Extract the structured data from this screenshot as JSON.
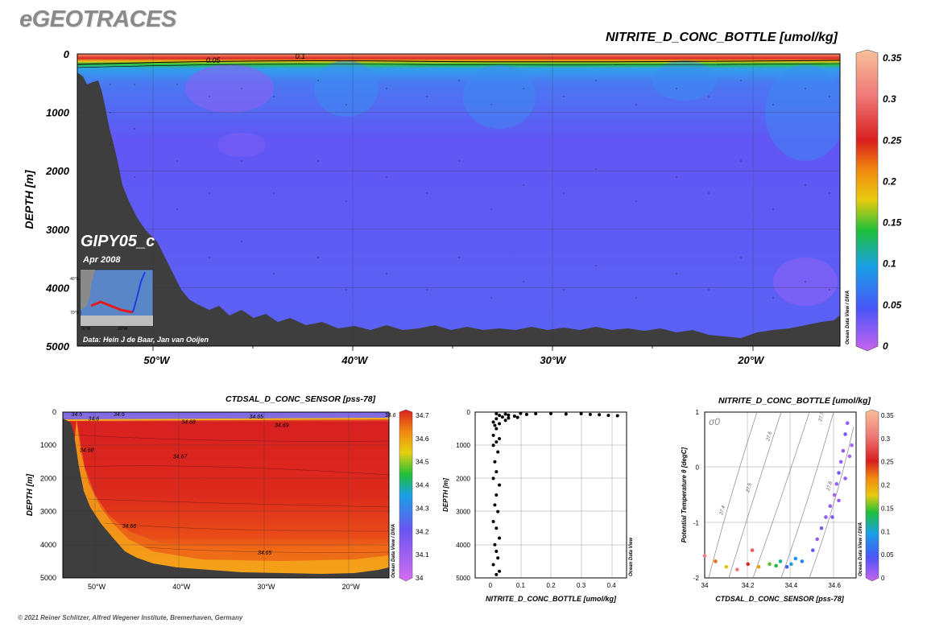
{
  "brand": "eGEOTRACES",
  "copyright": "© 2021 Reiner Schlitzer, Alfred Wegener Institute, Bremerhaven, Germany",
  "odv_tag": "Ocean Data View / DIVA",
  "odv_tag_short": "Ocean Data View",
  "inset": {
    "cruise": "GIPY05_c",
    "date": "Apr 2008",
    "credit": "Data: Hein J de Baar, Jan van Ooijen",
    "lat_labels": [
      "40°S",
      "70°S"
    ],
    "lon_labels": [
      "70°W",
      "20°W"
    ]
  },
  "chart_data": [
    {
      "type": "heatmap",
      "name_text": "NITRITE_D_CONC_BOTTLE [umol/kg]",
      "title": "NITRITE_D_CONC_BOTTLE [umol/kg]",
      "xlabel": "",
      "ylabel": "DEPTH [m]",
      "x_ticks": [
        "50°W",
        "40°W",
        "30°W",
        "20°W"
      ],
      "x_tick_values": [
        -50,
        -40,
        -30,
        -20
      ],
      "xlim": [
        -54,
        -15.5
      ],
      "y_ticks": [
        0,
        1000,
        2000,
        3000,
        4000,
        5000
      ],
      "ylim": [
        0,
        5000
      ],
      "colorbar": {
        "ticks": [
          0,
          0.05,
          0.1,
          0.15,
          0.2,
          0.25,
          0.3,
          0.35
        ],
        "range": [
          0,
          0.35
        ]
      },
      "contour_labels": [
        {
          "text": "0.05",
          "lon": -47.5,
          "depth": 150
        },
        {
          "text": "0.1",
          "lon": -43,
          "depth": 80
        }
      ],
      "colors": {
        "surface_max": "#f7a070",
        "deep_mean": "#6a5cf5",
        "bottom": "#3c3c3c"
      }
    },
    {
      "type": "heatmap",
      "title": "CTDSAL_D_CONC_SENSOR [pss-78]",
      "xlabel": "",
      "ylabel": "DEPTH [m]",
      "x_ticks": [
        "50°W",
        "40°W",
        "30°W",
        "20°W"
      ],
      "x_tick_values": [
        -50,
        -40,
        -30,
        -20
      ],
      "xlim": [
        -54,
        -15.5
      ],
      "y_ticks": [
        0,
        1000,
        2000,
        3000,
        4000,
        5000
      ],
      "ylim": [
        0,
        5000
      ],
      "colorbar": {
        "ticks": [
          34,
          34.1,
          34.2,
          34.3,
          34.4,
          34.5,
          34.6,
          34.7
        ],
        "range": [
          34,
          34.7
        ]
      },
      "contour_labels": [
        {
          "text": "34.5",
          "lon": -53,
          "depth": 120
        },
        {
          "text": "34.6",
          "lon": -48,
          "depth": 120
        },
        {
          "text": "34.6",
          "lon": -51,
          "depth": 260
        },
        {
          "text": "34.68",
          "lon": -40,
          "depth": 350
        },
        {
          "text": "34.65",
          "lon": -32,
          "depth": 200
        },
        {
          "text": "34.69",
          "lon": -29,
          "depth": 450
        },
        {
          "text": "34.68",
          "lon": -52,
          "depth": 1200
        },
        {
          "text": "34.67",
          "lon": -41,
          "depth": 1400
        },
        {
          "text": "34.66",
          "lon": -47,
          "depth": 3500
        },
        {
          "text": "34.65",
          "lon": -31,
          "depth": 4300
        },
        {
          "text": "34.6",
          "lon": -16,
          "depth": 150
        }
      ]
    },
    {
      "type": "scatter",
      "title": "",
      "xlabel": "NITRITE_D_CONC_BOTTLE [umol/kg]",
      "ylabel": "DEPTH [m]",
      "xlim": [
        -0.05,
        0.45
      ],
      "x_ticks": [
        0,
        0.1,
        0.2,
        0.3,
        0.4
      ],
      "ylim": [
        0,
        5000
      ],
      "y_ticks": [
        0,
        1000,
        2000,
        3000,
        4000,
        5000
      ],
      "points": [
        [
          0.02,
          50
        ],
        [
          0.05,
          60
        ],
        [
          0.1,
          40
        ],
        [
          0.15,
          50
        ],
        [
          0.2,
          45
        ],
        [
          0.25,
          60
        ],
        [
          0.3,
          50
        ],
        [
          0.33,
          70
        ],
        [
          0.36,
          80
        ],
        [
          0.39,
          100
        ],
        [
          0.42,
          110
        ],
        [
          0.03,
          100
        ],
        [
          0.06,
          90
        ],
        [
          0.08,
          120
        ],
        [
          0.12,
          70
        ],
        [
          0.04,
          150
        ],
        [
          0.02,
          200
        ],
        [
          0.05,
          250
        ],
        [
          0.01,
          300
        ],
        [
          0.03,
          350
        ],
        [
          0.06,
          180
        ],
        [
          0.09,
          160
        ],
        [
          0.015,
          400
        ],
        [
          0.02,
          500
        ],
        [
          0.01,
          700
        ],
        [
          0.03,
          800
        ],
        [
          0.02,
          900
        ],
        [
          0.01,
          1000
        ],
        [
          0.025,
          1200
        ],
        [
          0.015,
          1500
        ],
        [
          0.02,
          1800
        ],
        [
          0.01,
          2000
        ],
        [
          0.03,
          2200
        ],
        [
          0.02,
          2500
        ],
        [
          0.015,
          2800
        ],
        [
          0.025,
          3000
        ],
        [
          0.01,
          3300
        ],
        [
          0.02,
          3500
        ],
        [
          0.03,
          3800
        ],
        [
          0.015,
          4000
        ],
        [
          0.02,
          4200
        ],
        [
          0.025,
          4400
        ],
        [
          0.01,
          4600
        ],
        [
          0.03,
          4800
        ],
        [
          0.02,
          4900
        ]
      ],
      "colors": {
        "points": "#000000"
      }
    },
    {
      "type": "scatter",
      "title": "NITRITE_D_CONC_BOTTLE [umol/kg]",
      "xlabel": "CTDSAL_D_CONC_SENSOR [pss-78]",
      "ylabel": "Potential Temperature θ [degC]",
      "xlim": [
        34,
        34.7
      ],
      "x_ticks": [
        34,
        34.2,
        34.4,
        34.6
      ],
      "ylim": [
        -2,
        1
      ],
      "y_ticks": [
        -2,
        -1,
        0,
        1
      ],
      "sigma_label": "σ0",
      "isopycnal_labels": [
        "27.4",
        "27.5",
        "27.6",
        "27.7",
        "27.8"
      ],
      "colorbar": {
        "ticks": [
          0,
          0.05,
          0.1,
          0.15,
          0.2,
          0.25,
          0.3,
          0.35
        ],
        "range": [
          0,
          0.35
        ]
      },
      "points": [
        [
          34.66,
          0.8,
          0.02
        ],
        [
          34.65,
          0.6,
          0.03
        ],
        [
          34.64,
          0.3,
          0.02
        ],
        [
          34.63,
          0.1,
          0.02
        ],
        [
          34.62,
          -0.1,
          0.03
        ],
        [
          34.61,
          -0.3,
          0.02
        ],
        [
          34.6,
          -0.5,
          0.01
        ],
        [
          34.58,
          -0.7,
          0.02
        ],
        [
          34.56,
          -0.9,
          0.02
        ],
        [
          34.54,
          -1.1,
          0.03
        ],
        [
          34.52,
          -1.3,
          0.02
        ],
        [
          34.5,
          -1.5,
          0.04
        ],
        [
          34.68,
          0.4,
          0.01
        ],
        [
          34.67,
          0.2,
          0.01
        ],
        [
          34.65,
          -0.2,
          0.02
        ],
        [
          34.62,
          -0.6,
          0.02
        ],
        [
          34.59,
          -0.9,
          0.03
        ],
        [
          34.45,
          -1.7,
          0.08
        ],
        [
          34.4,
          -1.75,
          0.1
        ],
        [
          34.35,
          -1.7,
          0.12
        ],
        [
          34.3,
          -1.75,
          0.15
        ],
        [
          34.25,
          -1.8,
          0.2
        ],
        [
          34.2,
          -1.75,
          0.25
        ],
        [
          34.15,
          -1.85,
          0.3
        ],
        [
          34.1,
          -1.8,
          0.18
        ],
        [
          34.05,
          -1.7,
          0.22
        ],
        [
          34.0,
          -1.6,
          0.3
        ],
        [
          34.22,
          -1.5,
          0.28
        ],
        [
          34.38,
          -1.8,
          0.06
        ],
        [
          34.42,
          -1.65,
          0.09
        ],
        [
          34.33,
          -1.78,
          0.14
        ]
      ]
    }
  ]
}
